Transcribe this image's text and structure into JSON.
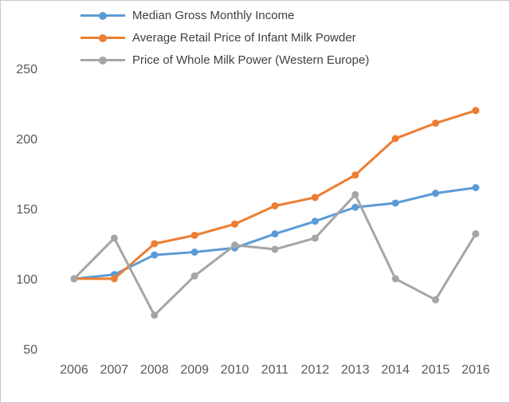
{
  "chart_data": {
    "type": "line",
    "title": "",
    "xlabel": "",
    "ylabel": "",
    "x": [
      "2006",
      "2007",
      "2008",
      "2009",
      "2010",
      "2011",
      "2012",
      "2013",
      "2014",
      "2015",
      "2016"
    ],
    "series": [
      {
        "name": "Median Gross Monthly Income",
        "color": "#5b9bd5",
        "values": [
          100,
          103,
          117,
          119,
          122,
          132,
          141,
          151,
          154,
          161,
          165
        ]
      },
      {
        "name": "Average Retail Price of Infant Milk Powder",
        "color": "#ed7d31",
        "values": [
          100,
          100,
          125,
          131,
          139,
          152,
          158,
          174,
          200,
          211,
          220
        ]
      },
      {
        "name": "Price of Whole Milk Power (Western Europe)",
        "color": "#a5a5a5",
        "values": [
          100,
          129,
          74,
          102,
          124,
          121,
          129,
          160,
          100,
          85,
          132
        ]
      }
    ],
    "ylim": [
      50,
      250
    ],
    "yticks": [
      50,
      100,
      150,
      200,
      250
    ],
    "grid": false,
    "legend_position": "top-left"
  },
  "style": {
    "axis_text_color": "#595959",
    "legend_text_color": "#404040",
    "frame_border_color": "#c8c8c8"
  }
}
